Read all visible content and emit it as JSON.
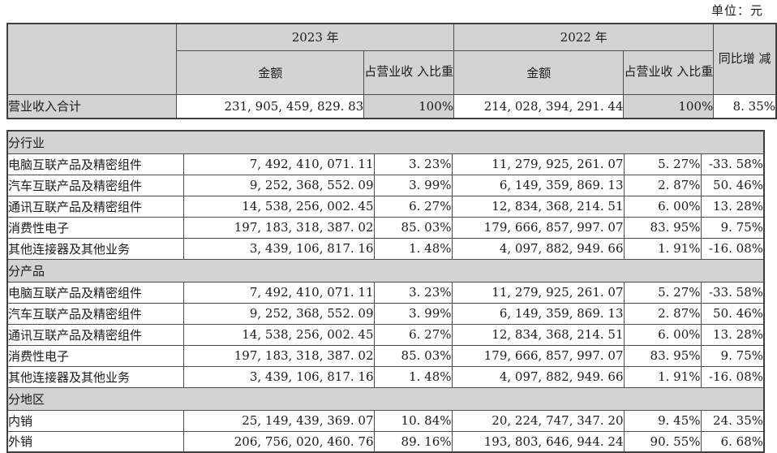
{
  "unit_label": "单位：元",
  "colors": {
    "header_bg": "#d3d3d3",
    "border": "#4d4d4d",
    "text": "#1b1b1b",
    "page_bg": "#ffffff"
  },
  "summary_table": {
    "headers": {
      "year_2023": "2023 年",
      "year_2022": "2022 年",
      "amount_2023": "金额",
      "ratio_2023": "占营业收\n入比重",
      "amount_2022": "金额",
      "ratio_2022": "占营业收\n入比重",
      "yoy": "同比增\n减"
    },
    "total_row": {
      "label": "营业收入合计",
      "amount_2023": "231, 905, 459, 829. 83",
      "ratio_2023": "100%",
      "amount_2022": "214, 028, 394, 291. 44",
      "ratio_2022": "100%",
      "yoy": "8. 35%"
    }
  },
  "detail_table": {
    "sections": [
      {
        "title": "分行业",
        "rows": [
          {
            "label": "电脑互联产品及精密组件",
            "amount_2023": "7, 492, 410, 071. 11",
            "ratio_2023": "3. 23%",
            "amount_2022": "11, 279, 925, 261. 07",
            "ratio_2022": "5. 27%",
            "yoy": "-33. 58%"
          },
          {
            "label": "汽车互联产品及精密组件",
            "amount_2023": "9, 252, 368, 552. 09",
            "ratio_2023": "3. 99%",
            "amount_2022": "6, 149, 359, 869. 13",
            "ratio_2022": "2. 87%",
            "yoy": "50. 46%"
          },
          {
            "label": "通讯互联产品及精密组件",
            "amount_2023": "14, 538, 256, 002. 45",
            "ratio_2023": "6. 27%",
            "amount_2022": "12, 834, 368, 214. 51",
            "ratio_2022": "6. 00%",
            "yoy": "13. 28%"
          },
          {
            "label": "消费性电子",
            "amount_2023": "197, 183, 318, 387. 02",
            "ratio_2023": "85. 03%",
            "amount_2022": "179, 666, 857, 997. 07",
            "ratio_2022": "83. 95%",
            "yoy": "9. 75%"
          },
          {
            "label": "其他连接器及其他业务",
            "amount_2023": "3, 439, 106, 817. 16",
            "ratio_2023": "1. 48%",
            "amount_2022": "4, 097, 882, 949. 66",
            "ratio_2022": "1. 91%",
            "yoy": "-16. 08%"
          }
        ]
      },
      {
        "title": "分产品",
        "rows": [
          {
            "label": "电脑互联产品及精密组件",
            "amount_2023": "7, 492, 410, 071. 11",
            "ratio_2023": "3. 23%",
            "amount_2022": "11, 279, 925, 261. 07",
            "ratio_2022": "5. 27%",
            "yoy": "-33. 58%"
          },
          {
            "label": "汽车互联产品及精密组件",
            "amount_2023": "9, 252, 368, 552. 09",
            "ratio_2023": "3. 99%",
            "amount_2022": "6, 149, 359, 869. 13",
            "ratio_2022": "2. 87%",
            "yoy": "50. 46%"
          },
          {
            "label": "通讯互联产品及精密组件",
            "amount_2023": "14, 538, 256, 002. 45",
            "ratio_2023": "6. 27%",
            "amount_2022": "12, 834, 368, 214. 51",
            "ratio_2022": "6. 00%",
            "yoy": "13. 28%"
          },
          {
            "label": "消费性电子",
            "amount_2023": "197, 183, 318, 387. 02",
            "ratio_2023": "85. 03%",
            "amount_2022": "179, 666, 857, 997. 07",
            "ratio_2022": "83. 95%",
            "yoy": "9. 75%"
          },
          {
            "label": "其他连接器及其他业务",
            "amount_2023": "3, 439, 106, 817. 16",
            "ratio_2023": "1. 48%",
            "amount_2022": "4, 097, 882, 949. 66",
            "ratio_2022": "1. 91%",
            "yoy": "-16. 08%"
          }
        ]
      },
      {
        "title": "分地区",
        "rows": [
          {
            "label": "内销",
            "amount_2023": "25, 149, 439, 369. 07",
            "ratio_2023": "10. 84%",
            "amount_2022": "20, 224, 747, 347. 20",
            "ratio_2022": "9. 45%",
            "yoy": "24. 35%"
          },
          {
            "label": "外销",
            "amount_2023": "206, 756, 020, 460. 76",
            "ratio_2023": "89. 16%",
            "amount_2022": "193, 803, 646, 944. 24",
            "ratio_2022": "90. 55%",
            "yoy": "6. 68%"
          }
        ]
      }
    ]
  }
}
